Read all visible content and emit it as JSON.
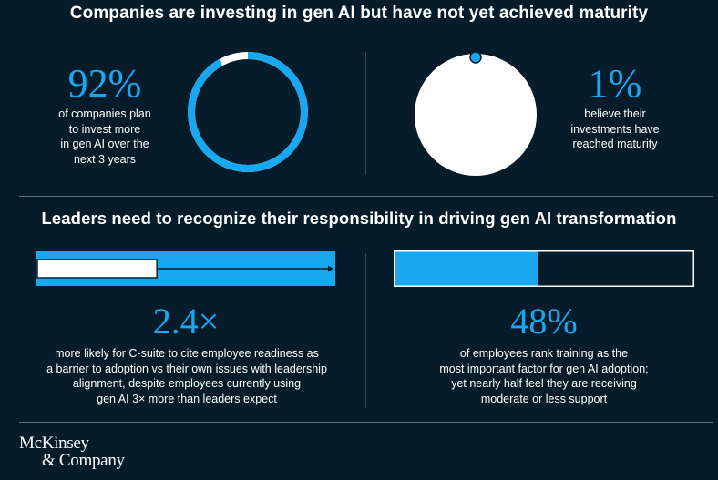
{
  "header": {
    "title": "Companies are investing in gen AI but have not yet achieved maturity"
  },
  "section2": {
    "title": "Leaders need to recognize their responsibility in driving gen AI transformation"
  },
  "stat_invest": {
    "value": "92%",
    "caption_lines": [
      "of companies plan",
      "to invest more",
      "in gen AI over the",
      "next 3 years"
    ]
  },
  "stat_maturity": {
    "value": "1%",
    "caption_lines": [
      "believe their",
      "investments have",
      "reached maturity"
    ]
  },
  "stat_csuite": {
    "value": "2.4×",
    "caption_lines": [
      "more likely for C-suite to cite employee readiness as",
      "a barrier to adoption vs their own issues with leadership",
      "alignment, despite employees currently using",
      "gen AI 3× more than leaders expect"
    ]
  },
  "stat_training": {
    "value": "48%",
    "caption_lines": [
      "of employees rank training as the",
      "most important factor for gen AI adoption;",
      "yet nearly half feel they are receiving",
      "moderate or less support"
    ]
  },
  "logo": {
    "line1": "McKinsey",
    "line2": "& Company"
  },
  "colors": {
    "background": "#071c2b",
    "accent": "#19a8f0",
    "white": "#ffffff"
  },
  "chart_data": [
    {
      "type": "donut",
      "value": 92,
      "max": 100
    },
    {
      "type": "pie",
      "value": 1,
      "max": 100
    },
    {
      "type": "bar",
      "series": [
        {
          "values": [
            1,
            2.4
          ]
        }
      ]
    },
    {
      "type": "bar",
      "value": 48,
      "max": 100
    }
  ]
}
